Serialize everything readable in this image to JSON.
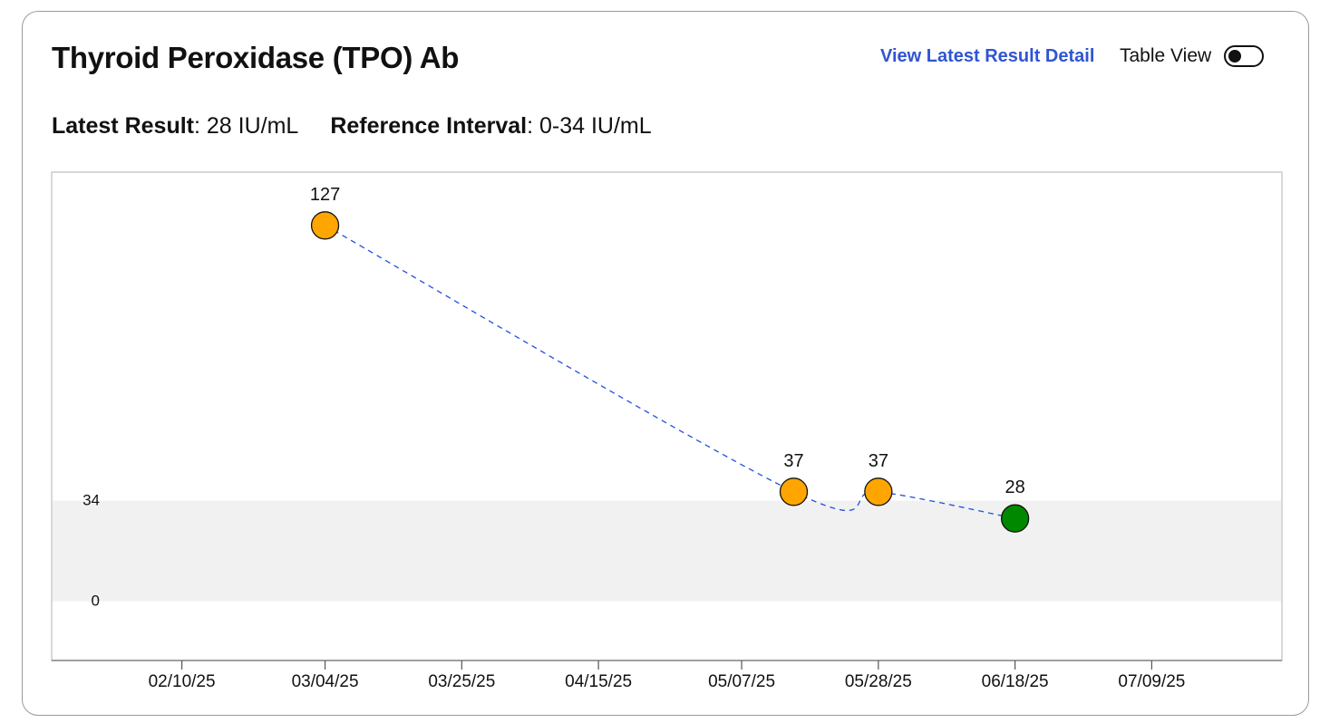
{
  "header": {
    "title": "Thyroid Peroxidase (TPO) Ab",
    "detail_link": "View Latest Result Detail",
    "table_view_label": "Table View",
    "table_view_on": false
  },
  "summary": {
    "latest_label": "Latest Result",
    "latest_value": "28 IU/mL",
    "reference_label": "Reference Interval",
    "reference_value": "0-34 IU/mL"
  },
  "colors": {
    "out_of_range": "#FFA500",
    "in_range": "#008800",
    "line": "#2050e0",
    "reference_band": "#f1f1f1",
    "link": "#2f55d4"
  },
  "chart_data": {
    "type": "scatter",
    "title": "",
    "xlabel": "",
    "ylabel": "",
    "x_tick_labels": [
      "02/10/25",
      "03/04/25",
      "03/25/25",
      "04/15/25",
      "05/07/25",
      "05/28/25",
      "06/18/25",
      "07/09/25"
    ],
    "x_ticks": [
      "2025-02-10",
      "2025-03-04",
      "2025-03-25",
      "2025-04-15",
      "2025-05-07",
      "2025-05-28",
      "2025-06-18",
      "2025-07-09"
    ],
    "xlim": [
      "2025-01-21",
      "2025-07-29"
    ],
    "y_tick_labels": [
      "0",
      "34"
    ],
    "y_ticks": [
      0,
      34
    ],
    "ylim": [
      -20,
      145
    ],
    "reference_band": [
      0,
      34
    ],
    "line_style": "dashed",
    "grid": false,
    "legend": "none",
    "points": [
      {
        "x": "2025-03-04",
        "y": 127,
        "label": "127",
        "status": "out_of_range"
      },
      {
        "x": "2025-05-15",
        "y": 37,
        "label": "37",
        "status": "out_of_range"
      },
      {
        "x": "2025-05-28",
        "y": 37,
        "label": "37",
        "status": "out_of_range"
      },
      {
        "x": "2025-06-18",
        "y": 28,
        "label": "28",
        "status": "in_range"
      }
    ]
  }
}
